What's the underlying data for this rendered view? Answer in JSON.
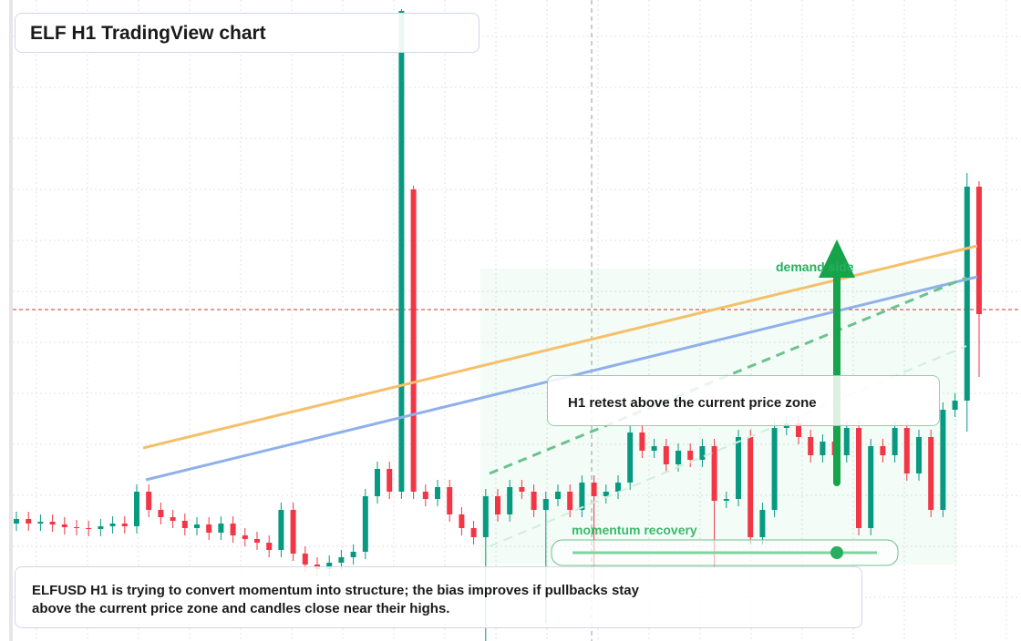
{
  "chart_data": {
    "type": "candlestick",
    "title": "ELF H1 TradingView chart",
    "annotations": {
      "zone": "demand side",
      "retest": "H1 retest above the current price zone",
      "momentum": "momentum recovery"
    },
    "description": [
      "ELFUSD H1 is trying to convert momentum into structure; the bias improves if pullbacks stay",
      "above the current price zone and candles close near their highs."
    ],
    "up_color": "#089981",
    "down_color": "#f23645",
    "ylim": [
      0,
      704
    ],
    "current_price": 364,
    "current_price_color": "#c0392b",
    "open": [
      129,
      134,
      129,
      131,
      128,
      125,
      124,
      123,
      126,
      129,
      126,
      164,
      144,
      136,
      132,
      124,
      128,
      119,
      129,
      116,
      112,
      108,
      100,
      144,
      96,
      84,
      79,
      86,
      92,
      98,
      159,
      189,
      164,
      496,
      164,
      156,
      169,
      139,
      124,
      114,
      159,
      139,
      169,
      164,
      144,
      156,
      164,
      144,
      174,
      159,
      164,
      174,
      229,
      209,
      214,
      194,
      209,
      199,
      214,
      154,
      156,
      224,
      114,
      144,
      234,
      239,
      224,
      204,
      219,
      204,
      234,
      124,
      214,
      204,
      234,
      184,
      224,
      144,
      254,
      264,
      499
    ],
    "high": [
      142,
      142,
      139,
      139,
      136,
      133,
      132,
      134,
      137,
      137,
      172,
      172,
      152,
      144,
      140,
      136,
      136,
      137,
      137,
      124,
      120,
      116,
      152,
      152,
      104,
      92,
      94,
      100,
      106,
      167,
      197,
      197,
      694,
      500,
      172,
      177,
      177,
      147,
      132,
      167,
      167,
      177,
      177,
      172,
      164,
      172,
      172,
      182,
      182,
      172,
      182,
      237,
      237,
      222,
      222,
      217,
      217,
      222,
      222,
      164,
      232,
      232,
      152,
      242,
      247,
      247,
      232,
      227,
      227,
      242,
      242,
      222,
      222,
      242,
      242,
      232,
      232,
      262,
      272,
      514,
      505
    ],
    "low": [
      121,
      121,
      121,
      120,
      117,
      116,
      115,
      115,
      118,
      118,
      118,
      136,
      128,
      124,
      116,
      116,
      111,
      111,
      108,
      104,
      100,
      92,
      92,
      88,
      76,
      71,
      71,
      78,
      84,
      90,
      151,
      156,
      156,
      156,
      148,
      148,
      131,
      116,
      106,
      0,
      131,
      131,
      156,
      136,
      20,
      148,
      136,
      136,
      60,
      151,
      156,
      166,
      201,
      201,
      186,
      186,
      191,
      191,
      80,
      146,
      148,
      106,
      106,
      136,
      226,
      216,
      196,
      196,
      196,
      196,
      116,
      116,
      196,
      196,
      176,
      176,
      136,
      136,
      246,
      230,
      290
    ],
    "close": [
      134,
      129,
      131,
      128,
      125,
      124,
      123,
      126,
      129,
      126,
      164,
      144,
      136,
      132,
      124,
      128,
      119,
      129,
      116,
      112,
      108,
      100,
      144,
      96,
      84,
      79,
      86,
      92,
      98,
      159,
      189,
      164,
      692,
      164,
      156,
      169,
      139,
      124,
      114,
      159,
      139,
      169,
      164,
      144,
      156,
      164,
      144,
      174,
      159,
      164,
      174,
      229,
      209,
      214,
      194,
      209,
      199,
      214,
      154,
      156,
      224,
      114,
      144,
      234,
      239,
      224,
      204,
      219,
      204,
      234,
      124,
      214,
      204,
      234,
      184,
      224,
      144,
      254,
      264,
      499,
      359
    ]
  }
}
